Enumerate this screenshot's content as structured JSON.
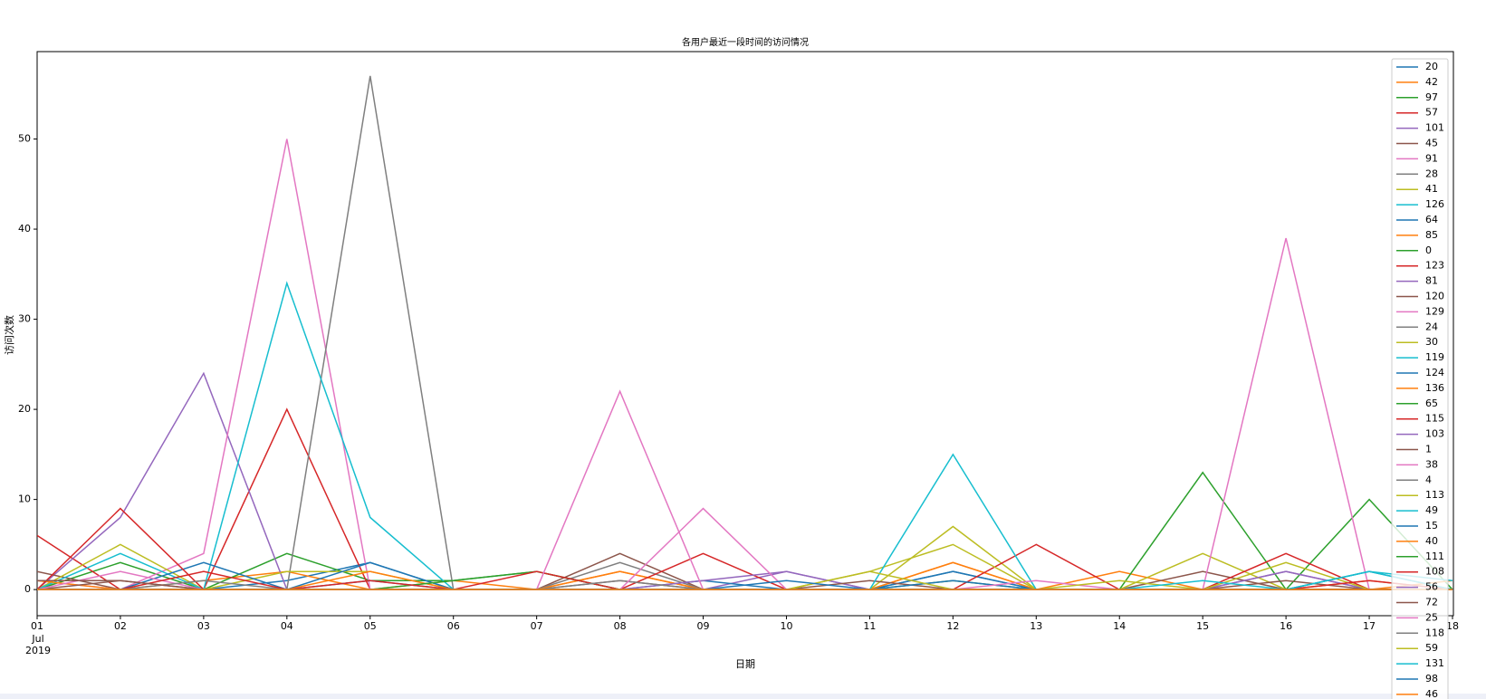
{
  "chart_data": {
    "type": "line",
    "title": "各用户最近一段时间的访问情况",
    "x_label": "日期",
    "y_label": "访问次数",
    "x_month": "Jul",
    "x_year": "2019",
    "categories": [
      "01",
      "02",
      "03",
      "04",
      "05",
      "06",
      "07",
      "08",
      "09",
      "10",
      "11",
      "12",
      "13",
      "14",
      "15",
      "16",
      "17",
      "18"
    ],
    "ylim": [
      -2.9,
      59.7
    ],
    "yticks": [
      0,
      10,
      20,
      30,
      40,
      50
    ],
    "grid": false,
    "legend": "upper right",
    "series": [
      {
        "name": "20",
        "color": "#1f77b4",
        "values": [
          0,
          0,
          0,
          1,
          3,
          0,
          0,
          0,
          0,
          0,
          0,
          2,
          0,
          0,
          0,
          0,
          0,
          0
        ]
      },
      {
        "name": "42",
        "color": "#ff7f0e",
        "values": [
          0,
          0,
          1,
          2,
          0,
          1,
          0,
          2,
          0,
          0,
          0,
          3,
          0,
          2,
          0,
          0,
          1,
          0
        ]
      },
      {
        "name": "97",
        "color": "#2ca02c",
        "values": [
          0,
          3,
          0,
          4,
          1,
          1,
          2,
          0,
          0,
          0,
          0,
          0,
          0,
          0,
          13,
          0,
          10,
          0
        ]
      },
      {
        "name": "57",
        "color": "#d62728",
        "values": [
          6,
          0,
          0,
          20,
          0,
          0,
          0,
          0,
          0,
          0,
          0,
          0,
          0,
          0,
          0,
          0,
          0,
          0
        ]
      },
      {
        "name": "101",
        "color": "#9467bd",
        "values": [
          0,
          8,
          24,
          0,
          0,
          0,
          0,
          0,
          0,
          2,
          0,
          0,
          0,
          0,
          0,
          2,
          0,
          0
        ]
      },
      {
        "name": "45",
        "color": "#8c564b",
        "values": [
          2,
          0,
          0,
          0,
          0,
          0,
          0,
          4,
          0,
          0,
          0,
          0,
          0,
          0,
          2,
          0,
          0,
          0
        ]
      },
      {
        "name": "91",
        "color": "#e377c2",
        "values": [
          1,
          0,
          4,
          50,
          0,
          0,
          0,
          0,
          0,
          0,
          0,
          0,
          0,
          0,
          0,
          0,
          0,
          0
        ]
      },
      {
        "name": "28",
        "color": "#7f7f7f",
        "values": [
          0,
          0,
          0,
          0,
          57,
          0,
          0,
          3,
          0,
          0,
          0,
          0,
          0,
          0,
          0,
          0,
          0,
          0
        ]
      },
      {
        "name": "41",
        "color": "#bcbd22",
        "values": [
          0,
          5,
          0,
          2,
          2,
          0,
          0,
          0,
          0,
          0,
          0,
          7,
          0,
          0,
          4,
          0,
          0,
          0
        ]
      },
      {
        "name": "126",
        "color": "#17becf",
        "values": [
          0,
          4,
          0,
          34,
          8,
          0,
          0,
          0,
          0,
          0,
          0,
          0,
          0,
          0,
          0,
          0,
          0,
          0
        ]
      },
      {
        "name": "64",
        "color": "#1f77b4",
        "values": [
          0,
          0,
          3,
          0,
          3,
          0,
          0,
          0,
          1,
          0,
          0,
          2,
          0,
          0,
          0,
          0,
          2,
          0
        ]
      },
      {
        "name": "85",
        "color": "#ff7f0e",
        "values": [
          1,
          0,
          0,
          0,
          2,
          0,
          0,
          2,
          0,
          0,
          0,
          3,
          0,
          0,
          0,
          0,
          0,
          0
        ]
      },
      {
        "name": "0",
        "color": "#2ca02c",
        "values": [
          0,
          0,
          0,
          0,
          0,
          1,
          2,
          0,
          0,
          0,
          0,
          1,
          0,
          0,
          0,
          0,
          0,
          0
        ]
      },
      {
        "name": "123",
        "color": "#d62728",
        "values": [
          0,
          9,
          0,
          0,
          0,
          0,
          2,
          0,
          4,
          0,
          0,
          0,
          5,
          0,
          0,
          4,
          0,
          0
        ]
      },
      {
        "name": "81",
        "color": "#9467bd",
        "values": [
          0,
          0,
          0,
          0,
          0,
          0,
          0,
          0,
          1,
          2,
          0,
          0,
          0,
          0,
          0,
          2,
          0,
          0
        ]
      },
      {
        "name": "120",
        "color": "#8c564b",
        "values": [
          0,
          1,
          0,
          0,
          0,
          0,
          0,
          1,
          0,
          0,
          1,
          0,
          0,
          0,
          0,
          1,
          0,
          0
        ]
      },
      {
        "name": "129",
        "color": "#e377c2",
        "values": [
          0,
          2,
          0,
          0,
          0,
          0,
          0,
          22,
          0,
          0,
          0,
          0,
          0,
          0,
          0,
          39,
          0,
          0
        ]
      },
      {
        "name": "24",
        "color": "#7f7f7f",
        "values": [
          0,
          0,
          1,
          0,
          0,
          0,
          0,
          1,
          0,
          0,
          0,
          0,
          0,
          0,
          0,
          0,
          0,
          0
        ]
      },
      {
        "name": "30",
        "color": "#bcbd22",
        "values": [
          0,
          0,
          0,
          0,
          0,
          0,
          0,
          0,
          0,
          0,
          2,
          5,
          0,
          0,
          0,
          3,
          0,
          0
        ]
      },
      {
        "name": "119",
        "color": "#17becf",
        "values": [
          0,
          0,
          0,
          0,
          0,
          0,
          0,
          0,
          0,
          0,
          0,
          15,
          0,
          0,
          0,
          0,
          0,
          0
        ]
      },
      {
        "name": "124",
        "color": "#1f77b4",
        "values": [
          0,
          0,
          0,
          0,
          1,
          0,
          0,
          0,
          0,
          0,
          0,
          1,
          0,
          0,
          0,
          0,
          0,
          0
        ]
      },
      {
        "name": "136",
        "color": "#ff7f0e",
        "values": [
          0,
          0,
          0,
          0,
          0,
          0,
          0,
          0,
          0,
          0,
          0,
          0,
          0,
          0,
          0,
          0,
          0,
          1
        ]
      },
      {
        "name": "65",
        "color": "#2ca02c",
        "values": [
          0,
          0,
          0,
          0,
          0,
          0,
          0,
          0,
          0,
          0,
          0,
          0,
          0,
          0,
          0,
          0,
          0,
          0
        ]
      },
      {
        "name": "115",
        "color": "#d62728",
        "values": [
          0,
          0,
          2,
          0,
          1,
          0,
          0,
          0,
          0,
          0,
          0,
          0,
          0,
          0,
          0,
          0,
          0,
          0
        ]
      },
      {
        "name": "103",
        "color": "#9467bd",
        "values": [
          0,
          0,
          0,
          0,
          0,
          0,
          0,
          0,
          0,
          0,
          0,
          0,
          0,
          0,
          0,
          0,
          0,
          0
        ]
      },
      {
        "name": "1",
        "color": "#8c564b",
        "values": [
          1,
          1,
          0,
          0,
          0,
          0,
          0,
          0,
          0,
          0,
          0,
          0,
          0,
          0,
          0,
          0,
          0,
          0
        ]
      },
      {
        "name": "38",
        "color": "#e377c2",
        "values": [
          0,
          0,
          0,
          0,
          0,
          0,
          0,
          0,
          9,
          0,
          0,
          0,
          1,
          0,
          0,
          0,
          0,
          0
        ]
      },
      {
        "name": "4",
        "color": "#7f7f7f",
        "values": [
          0,
          0,
          0,
          0,
          0,
          0,
          0,
          0,
          0,
          0,
          0,
          0,
          0,
          0,
          0,
          0,
          0,
          0
        ]
      },
      {
        "name": "113",
        "color": "#bcbd22",
        "values": [
          0,
          0,
          0,
          0,
          0,
          0,
          0,
          0,
          0,
          0,
          2,
          0,
          0,
          1,
          0,
          0,
          0,
          0
        ]
      },
      {
        "name": "49",
        "color": "#17becf",
        "values": [
          0,
          0,
          0,
          0,
          0,
          0,
          0,
          0,
          0,
          0,
          0,
          0,
          0,
          0,
          1,
          0,
          2,
          1
        ]
      },
      {
        "name": "15",
        "color": "#1f77b4",
        "values": [
          0,
          0,
          0,
          0,
          0,
          0,
          0,
          0,
          0,
          1,
          0,
          0,
          0,
          0,
          0,
          0,
          0,
          0
        ]
      },
      {
        "name": "40",
        "color": "#ff7f0e",
        "values": [
          0,
          0,
          0,
          0,
          0,
          0,
          0,
          0,
          0,
          0,
          0,
          0,
          0,
          0,
          0,
          0,
          0,
          0
        ]
      },
      {
        "name": "111",
        "color": "#2ca02c",
        "values": [
          0,
          0,
          0,
          0,
          0,
          0,
          0,
          0,
          0,
          0,
          0,
          0,
          0,
          0,
          0,
          0,
          0,
          0
        ]
      },
      {
        "name": "108",
        "color": "#d62728",
        "values": [
          0,
          0,
          0,
          0,
          0,
          0,
          0,
          0,
          0,
          0,
          0,
          0,
          0,
          0,
          0,
          0,
          1,
          0
        ]
      },
      {
        "name": "56",
        "color": "#9467bd",
        "values": [
          0,
          0,
          0,
          0,
          0,
          0,
          0,
          0,
          0,
          0,
          0,
          0,
          0,
          0,
          0,
          0,
          0,
          0
        ]
      },
      {
        "name": "72",
        "color": "#8c564b",
        "values": [
          0,
          0,
          0,
          0,
          0,
          0,
          0,
          0,
          0,
          0,
          0,
          0,
          0,
          0,
          0,
          0,
          0,
          0
        ]
      },
      {
        "name": "25",
        "color": "#e377c2",
        "values": [
          0,
          0,
          0,
          0,
          0,
          0,
          0,
          0,
          0,
          0,
          0,
          0,
          0,
          0,
          0,
          0,
          0,
          0
        ]
      },
      {
        "name": "118",
        "color": "#7f7f7f",
        "values": [
          0,
          0,
          0,
          0,
          0,
          0,
          0,
          0,
          0,
          0,
          0,
          0,
          0,
          0,
          0,
          0,
          0,
          0
        ]
      },
      {
        "name": "59",
        "color": "#bcbd22",
        "values": [
          0,
          0,
          0,
          0,
          0,
          0,
          0,
          0,
          0,
          0,
          0,
          0,
          0,
          0,
          0,
          0,
          0,
          0
        ]
      },
      {
        "name": "131",
        "color": "#17becf",
        "values": [
          0,
          0,
          0,
          0,
          0,
          0,
          0,
          0,
          0,
          0,
          0,
          0,
          0,
          0,
          0,
          0,
          2,
          0
        ]
      },
      {
        "name": "98",
        "color": "#1f77b4",
        "values": [
          0,
          0,
          0,
          0,
          0,
          0,
          0,
          0,
          0,
          0,
          0,
          0,
          0,
          0,
          0,
          0,
          0,
          0
        ]
      },
      {
        "name": "46",
        "color": "#ff7f0e",
        "values": [
          0,
          0,
          0,
          0,
          0,
          0,
          0,
          0,
          0,
          0,
          0,
          0,
          0,
          0,
          0,
          0,
          0,
          0
        ]
      }
    ]
  }
}
